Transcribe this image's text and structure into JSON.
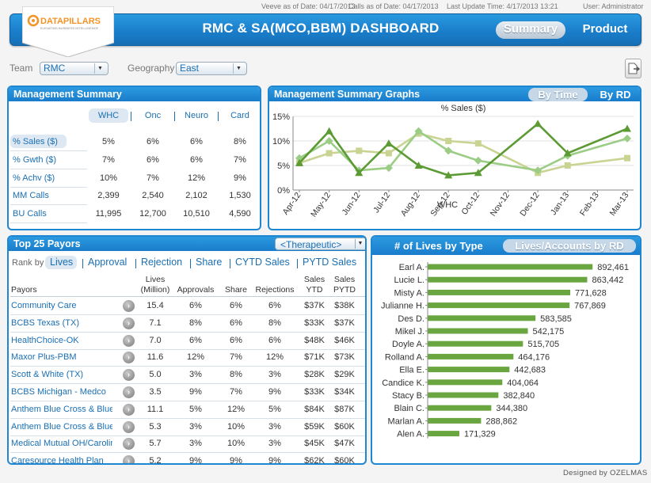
{
  "top_info": {
    "veeve": "Veeve as of Date: 04/17/2013",
    "calls": "Calls as of Date: 04/17/2013",
    "update": "Last Update Time: 4/17/2013 13:21",
    "user": "User: Administrator"
  },
  "logo": {
    "name": "DATAPILLARS",
    "tagline": "ELEVATING BUSINESS INTELLIGENCE"
  },
  "title": "RMC & SA(MCO,BBM) DASHBOARD",
  "nav": {
    "summary": "Summary",
    "product": "Product"
  },
  "filters": {
    "team_label": "Team",
    "team_value": "RMC",
    "geo_label": "Geography",
    "geo_value": "East"
  },
  "mgmt_summary": {
    "title": "Management Summary",
    "columns": [
      "WHC",
      "Onc",
      "Neuro",
      "Card"
    ],
    "rows": [
      {
        "label": "% Sales ($)",
        "values": [
          "5%",
          "6%",
          "6%",
          "8%"
        ]
      },
      {
        "label": "% Gwth ($)",
        "values": [
          "7%",
          "6%",
          "6%",
          "7%"
        ]
      },
      {
        "label": "% Achv ($)",
        "values": [
          "10%",
          "7%",
          "12%",
          "9%"
        ]
      },
      {
        "label": "MM Calls",
        "values": [
          "2,399",
          "2,540",
          "2,102",
          "1,530"
        ]
      },
      {
        "label": "BU Calls",
        "values": [
          "11,995",
          "12,700",
          "10,510",
          "4,590"
        ]
      }
    ]
  },
  "graphs": {
    "title": "Management Summary Graphs",
    "toggle_time": "By Time",
    "toggle_rd": "By RD"
  },
  "chart_data": {
    "type": "line",
    "title": "% Sales ($)",
    "xlabel": "WHC",
    "ylabel": "",
    "categories": [
      "Apr-12",
      "May-12",
      "Jun-12",
      "Jul-12",
      "Aug-12",
      "Sep-12",
      "Oct-12",
      "Nov-12",
      "Dec-12",
      "Jan-13",
      "Feb-13",
      "Mar-13"
    ],
    "ylim": [
      0,
      15
    ],
    "yticks": [
      "0%",
      "5%",
      "10%",
      "15%"
    ],
    "series": [
      {
        "color": "#5c9a34",
        "marker": "triangle",
        "values": [
          5.5,
          12,
          3.5,
          9.5,
          5,
          3,
          3.5,
          null,
          13.5,
          7.5,
          null,
          12.5
        ]
      },
      {
        "color": "#9ccd86",
        "marker": "diamond",
        "values": [
          6.5,
          10,
          4,
          4.5,
          12,
          8,
          6,
          null,
          4,
          7,
          null,
          10.5
        ]
      },
      {
        "color": "#c9d493",
        "marker": "square",
        "values": [
          5.5,
          7.5,
          8,
          7.5,
          11.5,
          10,
          9.5,
          null,
          3.5,
          5,
          null,
          6.5
        ]
      }
    ]
  },
  "payors": {
    "title": "Top 25 Payors",
    "dropdown": "<Therapeutic>",
    "rank_by": "Rank by",
    "tabs": [
      "Lives",
      "Approval",
      "Rejection",
      "Share",
      "CYTD Sales",
      "PYTD Sales"
    ],
    "headers": {
      "payors": "Payors",
      "lives1": "Lives",
      "lives2": "(Million)",
      "approvals": "Approvals",
      "share": "Share",
      "rejections": "Rejections",
      "sales1": "Sales",
      "ytd": "YTD",
      "sales2": "Sales",
      "pytd": "PYTD"
    },
    "rows": [
      [
        "Community Care",
        "15.4",
        "6%",
        "6%",
        "6%",
        "$37K",
        "$38K"
      ],
      [
        "BCBS Texas (TX)",
        "7.1",
        "8%",
        "6%",
        "8%",
        "$33K",
        "$37K"
      ],
      [
        "HealthChoice-OK",
        "7.0",
        "6%",
        "6%",
        "6%",
        "$48K",
        "$46K"
      ],
      [
        "Maxor Plus-PBM",
        "11.6",
        "12%",
        "7%",
        "12%",
        "$71K",
        "$73K"
      ],
      [
        "Scott & White (TX)",
        "5.0",
        "3%",
        "8%",
        "3%",
        "$28K",
        "$29K"
      ],
      [
        "BCBS Michigan - Medco",
        "3.5",
        "9%",
        "7%",
        "9%",
        "$33K",
        "$34K"
      ],
      [
        "Anthem Blue Cross & Blue",
        "11.1",
        "5%",
        "12%",
        "5%",
        "$84K",
        "$87K"
      ],
      [
        "Anthem Blue Cross & Blue",
        "5.3",
        "3%",
        "10%",
        "3%",
        "$59K",
        "$60K"
      ],
      [
        "Medical Mutual OH/Carolin",
        "5.7",
        "3%",
        "10%",
        "3%",
        "$45K",
        "$47K"
      ],
      [
        "Caresource Health Plan",
        "5.2",
        "9%",
        "9%",
        "9%",
        "$62K",
        "$60K"
      ]
    ]
  },
  "lives": {
    "title": "# of Lives by Type",
    "tab2": "Lives/Accounts by RD",
    "bar_color": "#6aa63f",
    "max": 900000,
    "names": [
      "Earl A.",
      "Lucie L.",
      "Misty A.",
      "Julianne H.",
      "Des D.",
      "Mikel J.",
      "Doyle A.",
      "Rolland A.",
      "Ella E.",
      "Candice K.",
      "Stacy B.",
      "Blain C.",
      "Marlan A.",
      "Alen A."
    ],
    "values": [
      892461,
      863442,
      771628,
      767869,
      583585,
      542175,
      515705,
      464176,
      442683,
      404064,
      382840,
      344380,
      288862,
      171329
    ],
    "labels": [
      "892,461",
      "863,442",
      "771,628",
      "767,869",
      "583,585",
      "542,175",
      "515,705",
      "464,176",
      "442,683",
      "404,064",
      "382,840",
      "344,380",
      "288,862",
      "171,329"
    ]
  },
  "footer": "Designed by OZELMAS"
}
